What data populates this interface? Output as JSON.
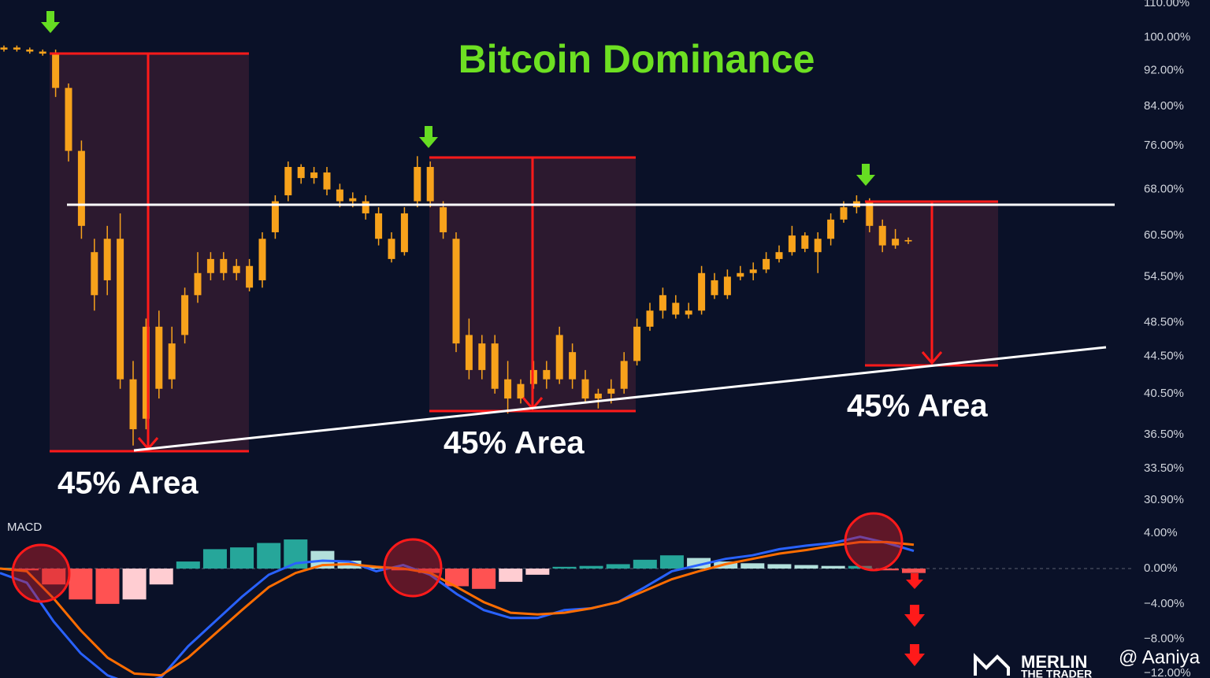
{
  "chart_data": [
    {
      "type": "candlestick",
      "title": "Bitcoin Dominance",
      "color": "#f7a21b",
      "log_scale": true,
      "ylim": [
        30,
        110
      ],
      "yticks": [
        {
          "value": 110,
          "label": "110.00%"
        },
        {
          "value": 100,
          "label": "100.00%"
        },
        {
          "value": 92,
          "label": "92.00%"
        },
        {
          "value": 84,
          "label": "84.00%"
        },
        {
          "value": 76,
          "label": "76.00%"
        },
        {
          "value": 68,
          "label": "68.00%"
        },
        {
          "value": 60.5,
          "label": "60.50%"
        },
        {
          "value": 54.5,
          "label": "54.50%"
        },
        {
          "value": 48.5,
          "label": "48.50%"
        },
        {
          "value": 44.5,
          "label": "44.50%"
        },
        {
          "value": 40.5,
          "label": "40.50%"
        },
        {
          "value": 36.5,
          "label": "36.50%"
        },
        {
          "value": 33.5,
          "label": "33.50%"
        },
        {
          "value": 30.9,
          "label": "30.90%"
        }
      ],
      "annotations": [
        "45% Area",
        "45% Area",
        "45% Area"
      ],
      "open": [
        97,
        97.5,
        97,
        96.5,
        96,
        88,
        75,
        58,
        54,
        60,
        42,
        38,
        48,
        42,
        47,
        52,
        55,
        57,
        55,
        56,
        54,
        61,
        67,
        72,
        70,
        71,
        68,
        66,
        66,
        64,
        60,
        58,
        66,
        72,
        65,
        60,
        47,
        43,
        46,
        42,
        40,
        41.5,
        43,
        42,
        45,
        42,
        40,
        40.5,
        41,
        44,
        48,
        50,
        51,
        49.5,
        50,
        54,
        52,
        54.5,
        55,
        55.5,
        57,
        58,
        60.5,
        58,
        60,
        63,
        65,
        66,
        62,
        59,
        59.8
      ],
      "high": [
        98,
        98,
        97.5,
        97,
        97,
        89,
        77,
        60,
        62,
        64,
        44,
        49,
        50,
        48,
        53,
        58,
        58,
        58,
        57,
        57,
        61,
        67,
        73,
        72.5,
        72,
        72,
        69,
        67.5,
        67,
        65,
        61,
        65,
        74,
        73,
        66,
        61,
        49,
        47,
        47,
        44,
        42,
        44,
        44,
        48,
        46,
        43,
        41,
        42,
        45,
        49,
        51,
        53,
        52,
        51,
        56,
        55,
        55.5,
        56,
        56.5,
        58,
        59,
        62,
        61,
        61,
        64,
        66,
        67,
        66.5,
        63,
        61.5,
        60.2
      ],
      "low": [
        96.5,
        96.5,
        96,
        95.5,
        86,
        73,
        60,
        50,
        52,
        41,
        35.5,
        37,
        40,
        41,
        46,
        51,
        54,
        54,
        54,
        52.5,
        53,
        60,
        66,
        69,
        69,
        67,
        65,
        65,
        63,
        59,
        56.5,
        57.5,
        65,
        65,
        60,
        45,
        42,
        42,
        40.5,
        38.5,
        39.5,
        41,
        41,
        41.5,
        41,
        39.5,
        39,
        39.5,
        40.5,
        43.5,
        47.5,
        49,
        49,
        49,
        49.5,
        51.5,
        51.5,
        54,
        54,
        55,
        56.5,
        57.5,
        58,
        55,
        59,
        62.5,
        64,
        61,
        58,
        58.5,
        59.2
      ],
      "close": [
        97.5,
        97,
        96.5,
        96,
        88,
        75,
        62,
        52,
        60,
        42,
        37,
        48,
        41,
        46,
        52,
        55,
        57,
        55,
        56,
        53,
        60,
        66,
        72,
        70,
        71,
        68,
        66,
        66.5,
        64,
        60,
        57,
        64,
        72,
        66,
        61,
        46,
        43,
        46,
        41,
        40,
        41.5,
        43,
        42,
        47,
        42,
        40,
        40.5,
        41,
        44,
        48,
        50,
        52,
        49.5,
        50,
        55,
        52,
        54.5,
        55,
        55.5,
        57,
        58,
        60.5,
        58.5,
        60,
        63,
        65,
        66,
        62,
        59,
        60,
        59.6
      ]
    },
    {
      "type": "macd",
      "title": "MACD",
      "ylim": [
        -12.4,
        6
      ],
      "yticks": [
        {
          "value": 4,
          "label": "4.00%"
        },
        {
          "value": 0,
          "label": "0.00%"
        },
        {
          "value": -4,
          "label": "−4.00%"
        },
        {
          "value": -8,
          "label": "−8.00%"
        },
        {
          "value": -12,
          "label": "−12.00%"
        }
      ],
      "histogram": {
        "colors": [
          "#26a69a",
          "#b2dfdb",
          "#ff5252",
          "#ffcdd2"
        ],
        "values": [
          0.1,
          -0.2,
          -1.8,
          -3.5,
          -4.0,
          -3.5,
          -1.8,
          0.8,
          2.2,
          2.4,
          2.9,
          3.3,
          2.0,
          0.9,
          0.2,
          -0.2,
          -0.5,
          -2.0,
          -2.3,
          -1.5,
          -0.7,
          0.2,
          0.3,
          0.5,
          1.0,
          1.5,
          1.2,
          0.8,
          0.6,
          0.5,
          0.4,
          0.3,
          0.3,
          -0.2,
          -0.5
        ]
      },
      "series": [
        {
          "color": "#2962ff",
          "values": [
            -0.5,
            -1.6,
            -6,
            -9.6,
            -12.1,
            -13.2,
            -12.3,
            -8.8,
            -6,
            -3.2,
            -0.7,
            0.6,
            0.9,
            0.8,
            -0.3,
            0.4,
            -0.7,
            -2.9,
            -4.7,
            -5.6,
            -5.6,
            -4.7,
            -4.5,
            -3.8,
            -2.1,
            -0.3,
            0.4,
            1.1,
            1.5,
            2.2,
            2.6,
            2.9,
            3.6,
            2.9,
            2.0
          ]
        },
        {
          "color": "#ff6d00",
          "values": [
            0,
            -0.3,
            -3.4,
            -7,
            -10.1,
            -11.9,
            -12.1,
            -10.1,
            -7.4,
            -4.7,
            -2.1,
            -0.5,
            0.4,
            0.5,
            0.2,
            0,
            -0.5,
            -2.1,
            -3.8,
            -5.0,
            -5.2,
            -5.0,
            -4.5,
            -3.8,
            -2.5,
            -1.2,
            -0.3,
            0.5,
            1.1,
            1.7,
            2.1,
            2.6,
            3.0,
            3.0,
            2.7
          ]
        }
      ]
    }
  ],
  "watermark": {
    "logo": "MERLIN",
    "sub": "THE TRADER",
    "handle": "@ Aaniya"
  }
}
